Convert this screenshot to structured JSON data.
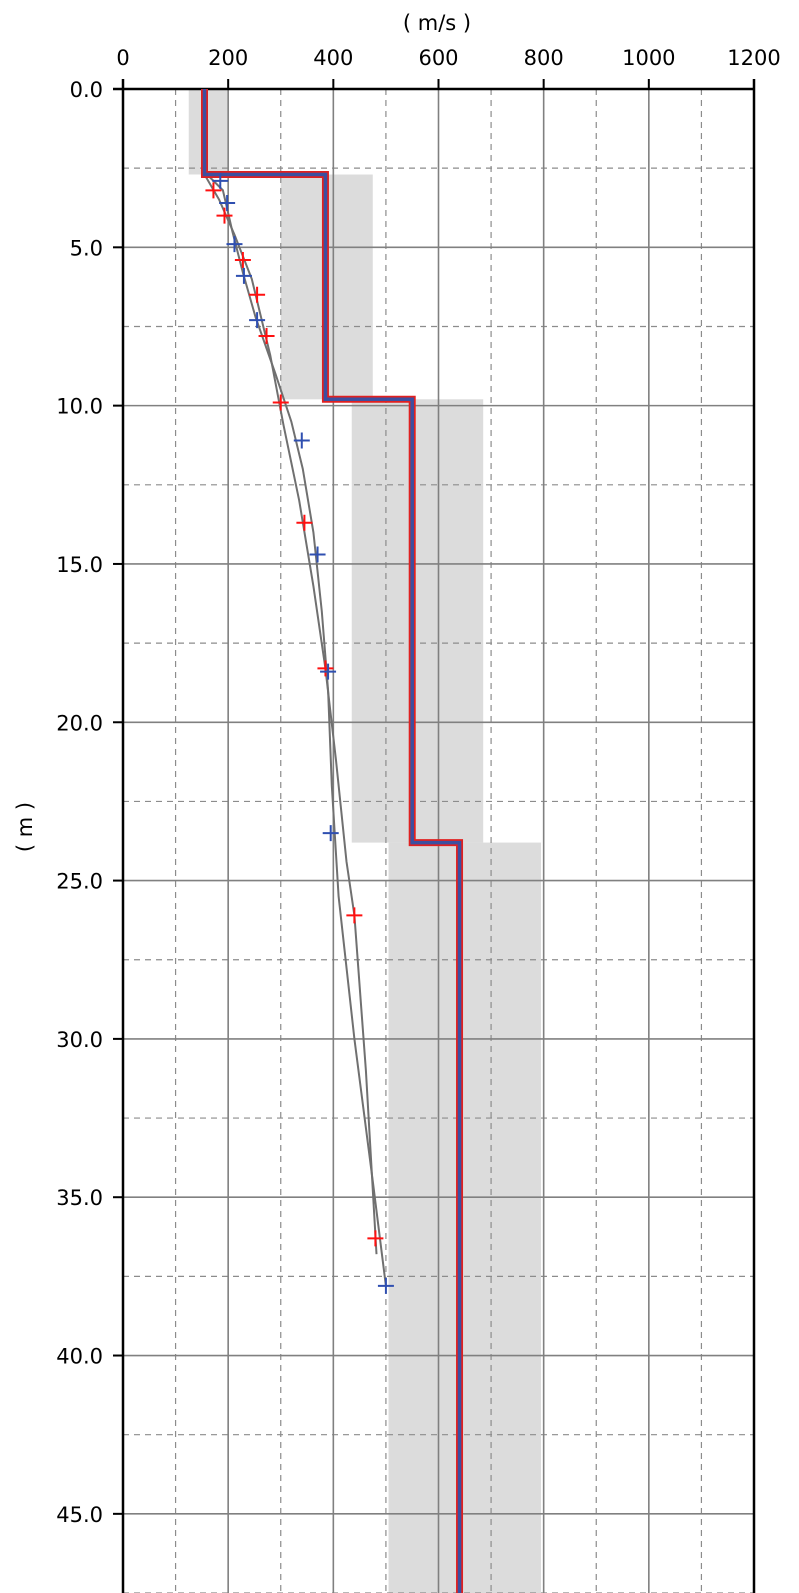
{
  "chart_data": {
    "type": "line",
    "xlabel": "( m/s )",
    "ylabel": "( m )",
    "x_axis": {
      "position": "top",
      "range": [
        0,
        1200
      ],
      "major_ticks": [
        0,
        200,
        400,
        600,
        800,
        1000,
        1200
      ],
      "minor_ticks": [
        100,
        300,
        500,
        700,
        900,
        1100
      ],
      "tick_labels": [
        "0",
        "200",
        "400",
        "600",
        "800",
        "1000",
        "1200"
      ]
    },
    "y_axis": {
      "range": [
        0,
        47.5
      ],
      "inverted": true,
      "major_ticks": [
        0,
        5,
        10,
        15,
        20,
        25,
        30,
        35,
        40,
        45
      ],
      "minor_ticks": [
        2.5,
        7.5,
        12.5,
        17.5,
        22.5,
        27.5,
        32.5,
        37.5,
        42.5,
        47.5
      ],
      "tick_labels": [
        "0.0",
        "5.0",
        "10.0",
        "15.0",
        "20.0",
        "25.0",
        "30.0",
        "35.0",
        "40.0",
        "45.0"
      ]
    },
    "grid": true,
    "colors": {
      "profile_fill": "#3c4fa0",
      "profile_edge": "#e02020",
      "uncertainty_band": "#dcdcdc",
      "grid_major": "#808080",
      "grid_minor": "#8c8c8c",
      "curve": "#707070",
      "red_markers": "#ff1010",
      "blue_markers": "#2f4fb0"
    },
    "uncertainty_bands": [
      {
        "depth_top": 0.0,
        "depth_bottom": 2.7,
        "vs_min": 125,
        "vs_max": 200
      },
      {
        "depth_top": 2.7,
        "depth_bottom": 9.8,
        "vs_min": 300,
        "vs_max": 475
      },
      {
        "depth_top": 9.8,
        "depth_bottom": 23.8,
        "vs_min": 435,
        "vs_max": 685
      },
      {
        "depth_top": 23.8,
        "depth_bottom": 47.5,
        "vs_min": 505,
        "vs_max": 795
      }
    ],
    "layers": [
      {
        "depth_top": 0.0,
        "depth_bottom": 2.7,
        "vs": 155
      },
      {
        "depth_top": 2.7,
        "depth_bottom": 9.8,
        "vs": 385
      },
      {
        "depth_top": 9.8,
        "depth_bottom": 23.8,
        "vs": 550
      },
      {
        "depth_top": 23.8,
        "depth_bottom": 47.5,
        "vs": 640
      }
    ],
    "series": [
      {
        "marker": "plus",
        "color": "red",
        "points": [
          {
            "vs": 172,
            "depth": 3.2
          },
          {
            "vs": 193,
            "depth": 4.0
          },
          {
            "vs": 228,
            "depth": 5.4
          },
          {
            "vs": 255,
            "depth": 6.5
          },
          {
            "vs": 273,
            "depth": 7.8
          },
          {
            "vs": 300,
            "depth": 9.9
          },
          {
            "vs": 345,
            "depth": 13.7
          },
          {
            "vs": 385,
            "depth": 18.3
          },
          {
            "vs": 440,
            "depth": 26.1
          },
          {
            "vs": 480,
            "depth": 36.3
          }
        ],
        "curve": [
          {
            "vs": 155,
            "depth": 2.7
          },
          {
            "vs": 183,
            "depth": 3.5
          },
          {
            "vs": 212,
            "depth": 4.6
          },
          {
            "vs": 245,
            "depth": 6.0
          },
          {
            "vs": 280,
            "depth": 8.4
          },
          {
            "vs": 305,
            "depth": 10.6
          },
          {
            "vs": 335,
            "depth": 13.0
          },
          {
            "vs": 362,
            "depth": 15.7
          },
          {
            "vs": 385,
            "depth": 18.3
          },
          {
            "vs": 405,
            "depth": 21.2
          },
          {
            "vs": 425,
            "depth": 24.4
          },
          {
            "vs": 440,
            "depth": 26.1
          },
          {
            "vs": 462,
            "depth": 31.0
          },
          {
            "vs": 482,
            "depth": 36.8
          }
        ]
      },
      {
        "marker": "plus",
        "color": "blue",
        "points": [
          {
            "vs": 185,
            "depth": 2.9
          },
          {
            "vs": 198,
            "depth": 3.6
          },
          {
            "vs": 212,
            "depth": 4.9
          },
          {
            "vs": 230,
            "depth": 5.9
          },
          {
            "vs": 255,
            "depth": 7.3
          },
          {
            "vs": 340,
            "depth": 11.1
          },
          {
            "vs": 370,
            "depth": 14.7
          },
          {
            "vs": 390,
            "depth": 18.4
          },
          {
            "vs": 395,
            "depth": 23.5
          },
          {
            "vs": 500,
            "depth": 37.8
          }
        ],
        "curve": [
          {
            "vs": 160,
            "depth": 2.7
          },
          {
            "vs": 190,
            "depth": 3.2
          },
          {
            "vs": 208,
            "depth": 4.5
          },
          {
            "vs": 228,
            "depth": 5.8
          },
          {
            "vs": 252,
            "depth": 7.2
          },
          {
            "vs": 290,
            "depth": 9.0
          },
          {
            "vs": 320,
            "depth": 10.5
          },
          {
            "vs": 342,
            "depth": 12.0
          },
          {
            "vs": 362,
            "depth": 14.0
          },
          {
            "vs": 378,
            "depth": 16.5
          },
          {
            "vs": 390,
            "depth": 19.0
          },
          {
            "vs": 397,
            "depth": 22.0
          },
          {
            "vs": 410,
            "depth": 25.5
          },
          {
            "vs": 440,
            "depth": 30.0
          },
          {
            "vs": 475,
            "depth": 34.5
          },
          {
            "vs": 500,
            "depth": 37.8
          }
        ]
      }
    ]
  }
}
